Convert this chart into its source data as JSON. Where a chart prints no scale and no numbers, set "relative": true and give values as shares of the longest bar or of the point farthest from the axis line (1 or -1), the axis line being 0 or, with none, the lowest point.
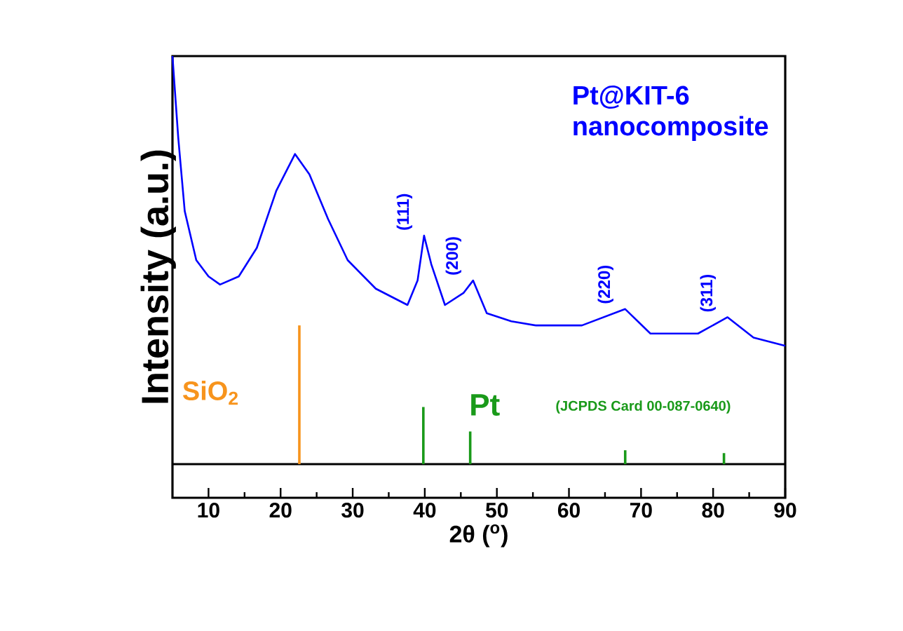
{
  "chart_data": {
    "type": "line",
    "relative": true,
    "xlabel": "2θ ($^{o}$)",
    "ylabel": "Intensity (a.u.)",
    "xlim": [
      5,
      90
    ],
    "xticks": [
      10,
      20,
      30,
      40,
      50,
      60,
      70,
      80,
      90
    ],
    "marker": "none",
    "line_style": "solid",
    "series": [
      {
        "name": "Pt@KIT-6 nanocomposite",
        "color": "#0000ff",
        "x": [
          5,
          5.8,
          6.7,
          8.3,
          10,
          11.6,
          14.2,
          16.7,
          19.4,
          22,
          24,
          26.6,
          29.3,
          33.2,
          37.6,
          39,
          39.9,
          40.9,
          42.8,
          45.4,
          46.7,
          48.6,
          52,
          55.4,
          61.8,
          67.8,
          71.3,
          77.9,
          82,
          85.6,
          90
        ],
        "values": [
          1.0,
          0.8,
          0.62,
          0.5,
          0.46,
          0.44,
          0.46,
          0.53,
          0.67,
          0.76,
          0.71,
          0.6,
          0.5,
          0.43,
          0.39,
          0.45,
          0.56,
          0.49,
          0.39,
          0.42,
          0.45,
          0.37,
          0.35,
          0.34,
          0.34,
          0.38,
          0.32,
          0.32,
          0.36,
          0.31,
          0.29
        ]
      },
      {
        "name": "SiO$_{2}$",
        "color": "#f7941d",
        "type": "bar",
        "x": [
          22.6
        ],
        "values": [
          0.34
        ]
      },
      {
        "name": "Pt",
        "color": "#1a9a1a",
        "type": "bar",
        "x": [
          39.8,
          46.3,
          67.8,
          81.5
        ],
        "values": [
          0.14,
          0.08,
          0.034,
          0.027
        ]
      }
    ],
    "annotations": [
      {
        "text": "(111)",
        "x": 39.9,
        "y": 0.56
      },
      {
        "text": "(200)",
        "x": 46.7,
        "y": 0.45
      },
      {
        "text": "(220)",
        "x": 67.8,
        "y": 0.38
      },
      {
        "text": "(311)",
        "x": 82,
        "y": 0.36
      },
      "(JCPDS Card 00-087-0640)"
    ]
  }
}
